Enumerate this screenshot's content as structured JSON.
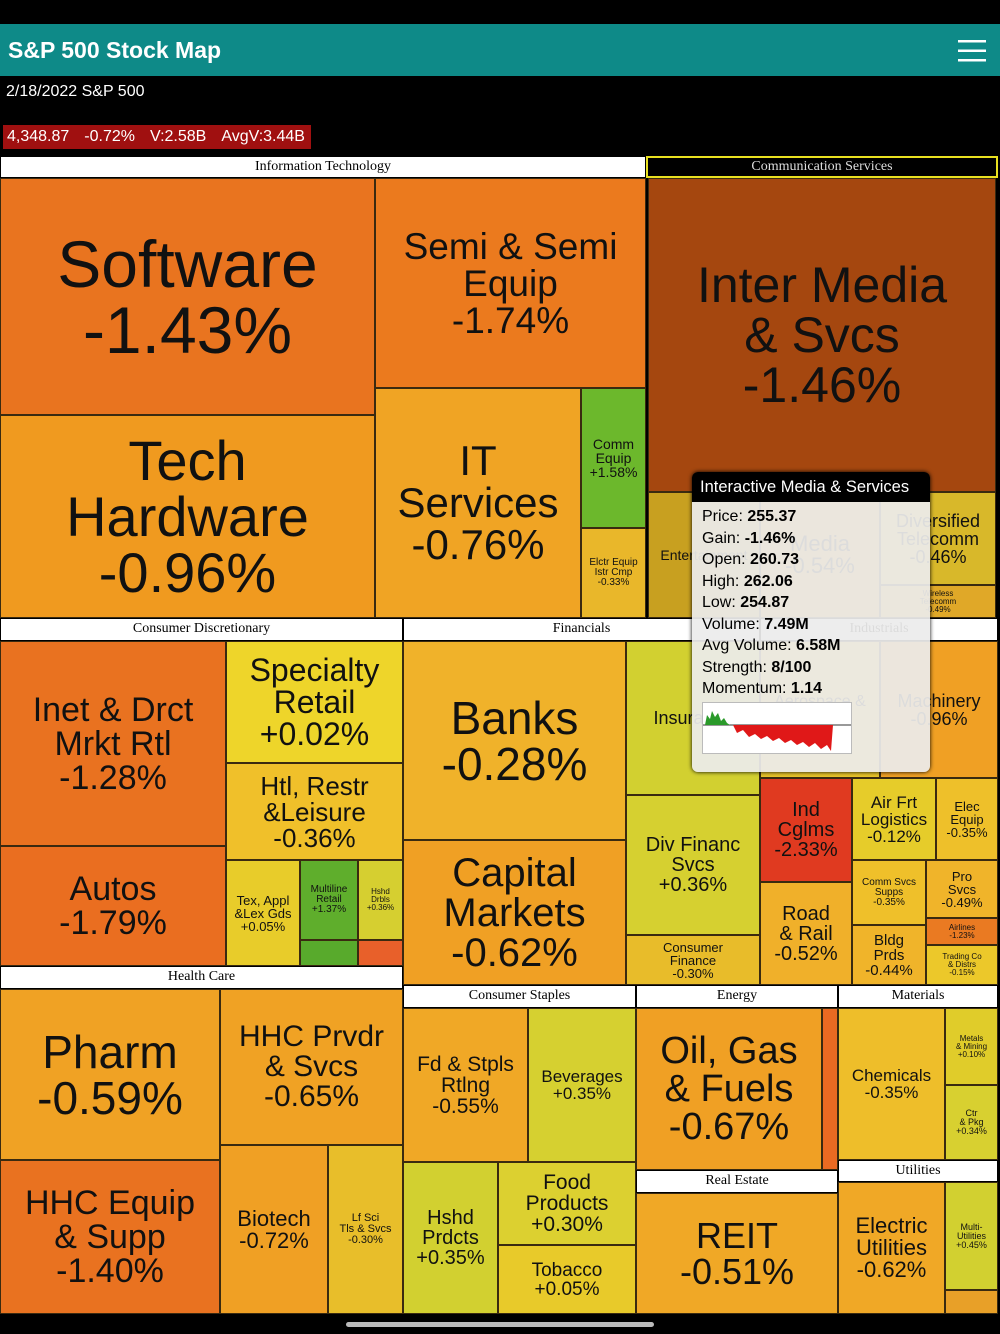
{
  "app": {
    "title": "S&P 500 Stock Map",
    "subtitle": "2/18/2022 S&P 500",
    "quote": [
      "4,348.87",
      "-0.72%",
      "V:2.58B",
      "AvgV:3.44B"
    ]
  },
  "sectors": [
    {
      "name": "Information Technology",
      "tiles": [
        {
          "label": "Software",
          "change": "-1.43%"
        },
        {
          "label": "Semi & Semi\nEquip",
          "change": "-1.74%"
        },
        {
          "label": "Tech\nHardware",
          "change": "-0.96%"
        },
        {
          "label": "IT\nServices",
          "change": "-0.76%"
        },
        {
          "label": "Comm\nEquip",
          "change": "+1.58%"
        },
        {
          "label": "Elctr Equip\nIstr Cmp",
          "change": "-0.33%"
        }
      ]
    },
    {
      "name": "Communication Services",
      "tiles": [
        {
          "label": "Inter Media\n& Svcs",
          "change": "-1.46%"
        },
        {
          "label": "Entertainment"
        },
        {
          "label": "Media",
          "change": "-0.54%"
        },
        {
          "label": "Diversified\nTelecomm",
          "change": "-0.46%"
        },
        {
          "label": "Wireless\nTelecomm",
          "change": "-0.49%"
        }
      ]
    },
    {
      "name": "Consumer Discretionary",
      "tiles": [
        {
          "label": "Inet & Drct\nMrkt Rtl",
          "change": "-1.28%"
        },
        {
          "label": "Autos",
          "change": "-1.79%"
        },
        {
          "label": "Specialty\nRetail",
          "change": "+0.02%"
        },
        {
          "label": "Htl, Restr\n&Leisure",
          "change": "-0.36%"
        },
        {
          "label": "Tex, Appl\n&Lex Gds",
          "change": "+0.05%"
        },
        {
          "label": "Multiline\nRetail",
          "change": "+1.37%"
        },
        {
          "label": "Hshd\nDrbls",
          "change": "+0.36%"
        }
      ]
    },
    {
      "name": "Financials",
      "tiles": [
        {
          "label": "Banks",
          "change": "-0.28%"
        },
        {
          "label": "Capital\nMarkets",
          "change": "-0.62%"
        },
        {
          "label": "Insurance"
        },
        {
          "label": "Div Financ\nSvcs",
          "change": "+0.36%"
        },
        {
          "label": "Consumer\nFinance",
          "change": "-0.30%"
        }
      ]
    },
    {
      "name": "Industrials",
      "tiles": [
        {
          "label": "Aerospace & Def"
        },
        {
          "label": "Machinery",
          "change": "-0.96%"
        },
        {
          "label": "Ind\nCglms",
          "change": "-2.33%"
        },
        {
          "label": "Road\n& Rail",
          "change": "-0.52%"
        },
        {
          "label": "Air Frt\nLogistics",
          "change": "-0.12%"
        },
        {
          "label": "Elec\nEquip",
          "change": "-0.35%"
        },
        {
          "label": "Comm Svcs\nSupps",
          "change": "-0.35%"
        },
        {
          "label": "Pro\nSvcs",
          "change": "-0.49%"
        },
        {
          "label": "Airlines",
          "change": "-1.23%"
        },
        {
          "label": "Bldg\nPrds",
          "change": "-0.44%"
        },
        {
          "label": "Trading Co\n& Distrs",
          "change": "-0.15%"
        }
      ]
    },
    {
      "name": "Health Care",
      "tiles": [
        {
          "label": "Pharm",
          "change": "-0.59%"
        },
        {
          "label": "HHC Prvdr\n& Svcs",
          "change": "-0.65%"
        },
        {
          "label": "HHC Equip\n& Supp",
          "change": "-1.40%"
        },
        {
          "label": "Biotech",
          "change": "-0.72%"
        },
        {
          "label": "Lf Sci\nTls & Svcs",
          "change": "-0.30%"
        }
      ]
    },
    {
      "name": "Consumer Staples",
      "tiles": [
        {
          "label": "Fd & Stpls\nRtlng",
          "change": "-0.55%"
        },
        {
          "label": "Beverages",
          "change": "+0.35%"
        },
        {
          "label": "Hshd\nPrdcts",
          "change": "+0.35%"
        },
        {
          "label": "Food\nProducts",
          "change": "+0.30%"
        },
        {
          "label": "Tobacco",
          "change": "+0.05%"
        }
      ]
    },
    {
      "name": "Energy",
      "tiles": [
        {
          "label": "Oil, Gas\n& Fuels",
          "change": "-0.67%"
        }
      ]
    },
    {
      "name": "Real Estate",
      "tiles": [
        {
          "label": "REIT",
          "change": "-0.51%"
        }
      ]
    },
    {
      "name": "Materials",
      "tiles": [
        {
          "label": "Chemicals",
          "change": "-0.35%"
        },
        {
          "label": "Metals\n& Mining",
          "change": "+0.10%"
        },
        {
          "label": "Ctr\n& Pkg",
          "change": "+0.34%"
        }
      ]
    },
    {
      "name": "Utilities",
      "tiles": [
        {
          "label": "Electric\nUtilities",
          "change": "-0.62%"
        },
        {
          "label": "Multi-\nUtilities",
          "change": "+0.45%"
        }
      ]
    }
  ],
  "tooltip": {
    "title": "Interactive Media & Services",
    "rows": [
      {
        "label": "Price:",
        "value": "255.37"
      },
      {
        "label": "Gain:",
        "value": "-1.46%"
      },
      {
        "label": "Open:",
        "value": "260.73"
      },
      {
        "label": "High:",
        "value": "262.06"
      },
      {
        "label": "Low:",
        "value": "254.87"
      },
      {
        "label": "Volume:",
        "value": "7.49M"
      },
      {
        "label": "Avg Volume:",
        "value": "6.58M"
      },
      {
        "label": "Strength:",
        "value": "8/100"
      },
      {
        "label": "Momentum:",
        "value": "1.14"
      }
    ]
  }
}
